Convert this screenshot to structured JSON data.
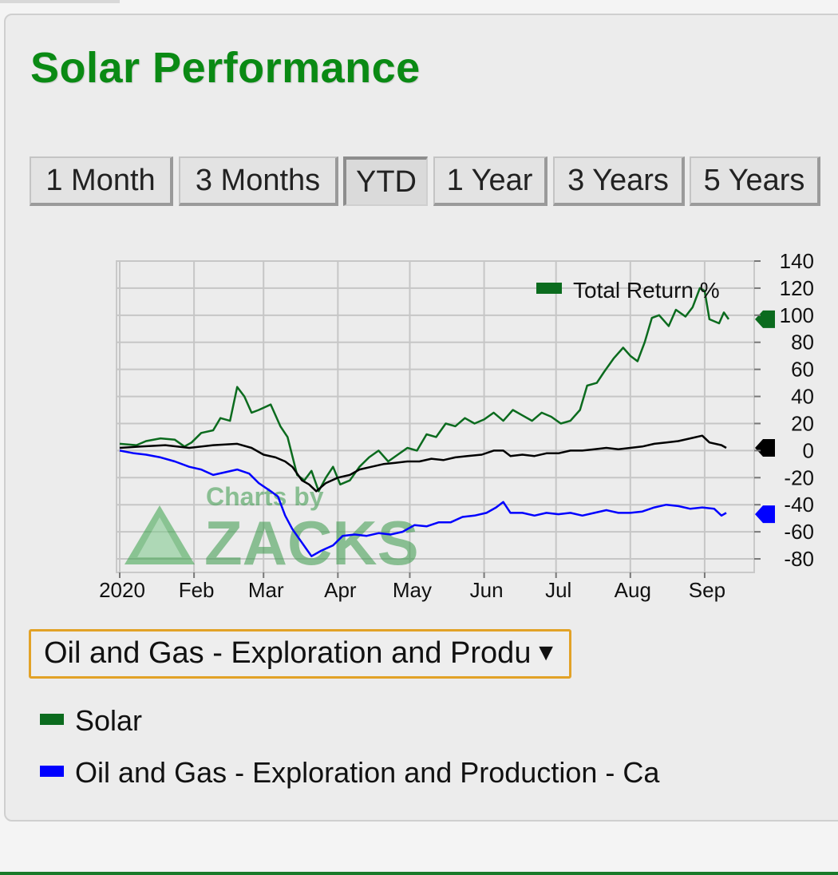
{
  "title": "Solar Performance",
  "tabs": [
    {
      "label": "1 Month",
      "active": false
    },
    {
      "label": "3 Months",
      "active": false
    },
    {
      "label": "YTD",
      "active": true
    },
    {
      "label": "1 Year",
      "active": false
    },
    {
      "label": "3 Years",
      "active": false
    },
    {
      "label": "5 Years",
      "active": false
    }
  ],
  "dropdown": {
    "selected": "Oil and Gas - Exploration and Production - Canadian"
  },
  "legend": {
    "items": [
      {
        "label": "Solar",
        "color": "#0b6b1e"
      },
      {
        "label": "Oil and Gas - Exploration and Production - Ca",
        "color": "#0000ff"
      }
    ]
  },
  "watermark": {
    "line1": "Charts by",
    "line2": "ZACKS"
  },
  "chart_data": {
    "type": "line",
    "legend_title": "Total Return %",
    "legend_position": "top-right",
    "grid": true,
    "y_axis_side": "right",
    "ylim": [
      -90,
      140
    ],
    "yticks": [
      140,
      120,
      100,
      80,
      60,
      40,
      20,
      0,
      -20,
      -40,
      -60,
      -80
    ],
    "xlim": [
      "2020-01-01",
      "2020-09-20"
    ],
    "xticks": [
      {
        "date": "2020-01-01",
        "label": "2020"
      },
      {
        "date": "2020-02-01",
        "label": "Feb"
      },
      {
        "date": "2020-03-01",
        "label": "Mar"
      },
      {
        "date": "2020-04-01",
        "label": "Apr"
      },
      {
        "date": "2020-05-01",
        "label": "May"
      },
      {
        "date": "2020-06-01",
        "label": "Jun"
      },
      {
        "date": "2020-07-01",
        "label": "Jul"
      },
      {
        "date": "2020-08-01",
        "label": "Aug"
      },
      {
        "date": "2020-09-01",
        "label": "Sep"
      }
    ],
    "series": [
      {
        "name": "Solar",
        "color": "#0b6b1e",
        "last_value": 97,
        "points": [
          [
            "2020-01-01",
            5
          ],
          [
            "2020-01-08",
            4
          ],
          [
            "2020-01-12",
            7
          ],
          [
            "2020-01-18",
            9
          ],
          [
            "2020-01-24",
            8
          ],
          [
            "2020-01-28",
            3
          ],
          [
            "2020-01-31",
            6
          ],
          [
            "2020-02-04",
            13
          ],
          [
            "2020-02-09",
            15
          ],
          [
            "2020-02-12",
            24
          ],
          [
            "2020-02-16",
            22
          ],
          [
            "2020-02-19",
            47
          ],
          [
            "2020-02-22",
            40
          ],
          [
            "2020-02-25",
            28
          ],
          [
            "2020-02-28",
            30
          ],
          [
            "2020-03-04",
            34
          ],
          [
            "2020-03-08",
            18
          ],
          [
            "2020-03-11",
            10
          ],
          [
            "2020-03-15",
            -18
          ],
          [
            "2020-03-18",
            -22
          ],
          [
            "2020-03-21",
            -15
          ],
          [
            "2020-03-24",
            -30
          ],
          [
            "2020-03-27",
            -20
          ],
          [
            "2020-03-30",
            -12
          ],
          [
            "2020-04-02",
            -25
          ],
          [
            "2020-04-06",
            -22
          ],
          [
            "2020-04-10",
            -12
          ],
          [
            "2020-04-14",
            -5
          ],
          [
            "2020-04-18",
            0
          ],
          [
            "2020-04-22",
            -8
          ],
          [
            "2020-04-26",
            -3
          ],
          [
            "2020-04-30",
            2
          ],
          [
            "2020-05-04",
            0
          ],
          [
            "2020-05-08",
            12
          ],
          [
            "2020-05-12",
            10
          ],
          [
            "2020-05-16",
            20
          ],
          [
            "2020-05-20",
            18
          ],
          [
            "2020-05-24",
            24
          ],
          [
            "2020-05-28",
            20
          ],
          [
            "2020-06-01",
            23
          ],
          [
            "2020-06-05",
            28
          ],
          [
            "2020-06-09",
            22
          ],
          [
            "2020-06-13",
            30
          ],
          [
            "2020-06-17",
            26
          ],
          [
            "2020-06-21",
            22
          ],
          [
            "2020-06-25",
            28
          ],
          [
            "2020-06-29",
            25
          ],
          [
            "2020-07-03",
            20
          ],
          [
            "2020-07-07",
            22
          ],
          [
            "2020-07-11",
            30
          ],
          [
            "2020-07-14",
            48
          ],
          [
            "2020-07-18",
            50
          ],
          [
            "2020-07-21",
            58
          ],
          [
            "2020-07-25",
            68
          ],
          [
            "2020-07-29",
            76
          ],
          [
            "2020-08-01",
            70
          ],
          [
            "2020-08-04",
            66
          ],
          [
            "2020-08-07",
            80
          ],
          [
            "2020-08-10",
            98
          ],
          [
            "2020-08-13",
            100
          ],
          [
            "2020-08-17",
            92
          ],
          [
            "2020-08-20",
            104
          ],
          [
            "2020-08-24",
            99
          ],
          [
            "2020-08-27",
            106
          ],
          [
            "2020-08-30",
            120
          ],
          [
            "2020-09-01",
            118
          ],
          [
            "2020-09-03",
            97
          ],
          [
            "2020-09-07",
            94
          ],
          [
            "2020-09-09",
            102
          ],
          [
            "2020-09-11",
            97
          ]
        ]
      },
      {
        "name": "Oil and Gas - Exploration and Production - Ca",
        "color": "#0000ff",
        "last_value": -47,
        "points": [
          [
            "2020-01-01",
            0
          ],
          [
            "2020-01-07",
            -2
          ],
          [
            "2020-01-12",
            -3
          ],
          [
            "2020-01-18",
            -5
          ],
          [
            "2020-01-24",
            -8
          ],
          [
            "2020-01-30",
            -12
          ],
          [
            "2020-02-04",
            -14
          ],
          [
            "2020-02-09",
            -18
          ],
          [
            "2020-02-14",
            -16
          ],
          [
            "2020-02-19",
            -14
          ],
          [
            "2020-02-24",
            -17
          ],
          [
            "2020-02-28",
            -24
          ],
          [
            "2020-03-04",
            -30
          ],
          [
            "2020-03-07",
            -34
          ],
          [
            "2020-03-10",
            -48
          ],
          [
            "2020-03-13",
            -58
          ],
          [
            "2020-03-17",
            -68
          ],
          [
            "2020-03-21",
            -78
          ],
          [
            "2020-03-25",
            -74
          ],
          [
            "2020-03-30",
            -70
          ],
          [
            "2020-04-03",
            -63
          ],
          [
            "2020-04-08",
            -62
          ],
          [
            "2020-04-13",
            -63
          ],
          [
            "2020-04-18",
            -61
          ],
          [
            "2020-04-23",
            -62
          ],
          [
            "2020-04-28",
            -60
          ],
          [
            "2020-05-03",
            -55
          ],
          [
            "2020-05-08",
            -56
          ],
          [
            "2020-05-13",
            -53
          ],
          [
            "2020-05-18",
            -53
          ],
          [
            "2020-05-23",
            -49
          ],
          [
            "2020-05-28",
            -48
          ],
          [
            "2020-06-02",
            -46
          ],
          [
            "2020-06-06",
            -42
          ],
          [
            "2020-06-09",
            -38
          ],
          [
            "2020-06-12",
            -46
          ],
          [
            "2020-06-17",
            -46
          ],
          [
            "2020-06-22",
            -48
          ],
          [
            "2020-06-27",
            -46
          ],
          [
            "2020-07-02",
            -47
          ],
          [
            "2020-07-07",
            -46
          ],
          [
            "2020-07-12",
            -48
          ],
          [
            "2020-07-17",
            -46
          ],
          [
            "2020-07-22",
            -44
          ],
          [
            "2020-07-27",
            -46
          ],
          [
            "2020-08-01",
            -46
          ],
          [
            "2020-08-06",
            -45
          ],
          [
            "2020-08-11",
            -42
          ],
          [
            "2020-08-16",
            -40
          ],
          [
            "2020-08-21",
            -41
          ],
          [
            "2020-08-26",
            -43
          ],
          [
            "2020-08-31",
            -42
          ],
          [
            "2020-09-05",
            -43
          ],
          [
            "2020-09-08",
            -48
          ],
          [
            "2020-09-10",
            -46
          ]
        ]
      },
      {
        "color": "#000000",
        "last_value": 2,
        "points": [
          [
            "2020-01-01",
            2
          ],
          [
            "2020-01-10",
            3
          ],
          [
            "2020-01-20",
            4
          ],
          [
            "2020-01-30",
            2
          ],
          [
            "2020-02-09",
            4
          ],
          [
            "2020-02-19",
            5
          ],
          [
            "2020-02-25",
            2
          ],
          [
            "2020-03-01",
            -3
          ],
          [
            "2020-03-06",
            -5
          ],
          [
            "2020-03-10",
            -8
          ],
          [
            "2020-03-13",
            -12
          ],
          [
            "2020-03-17",
            -22
          ],
          [
            "2020-03-20",
            -25
          ],
          [
            "2020-03-23",
            -30
          ],
          [
            "2020-03-27",
            -24
          ],
          [
            "2020-04-01",
            -20
          ],
          [
            "2020-04-06",
            -18
          ],
          [
            "2020-04-10",
            -14
          ],
          [
            "2020-04-15",
            -12
          ],
          [
            "2020-04-20",
            -10
          ],
          [
            "2020-04-25",
            -9
          ],
          [
            "2020-04-30",
            -8
          ],
          [
            "2020-05-05",
            -8
          ],
          [
            "2020-05-10",
            -6
          ],
          [
            "2020-05-15",
            -7
          ],
          [
            "2020-05-20",
            -5
          ],
          [
            "2020-05-25",
            -4
          ],
          [
            "2020-05-31",
            -3
          ],
          [
            "2020-06-05",
            0
          ],
          [
            "2020-06-09",
            0
          ],
          [
            "2020-06-12",
            -4
          ],
          [
            "2020-06-17",
            -3
          ],
          [
            "2020-06-22",
            -4
          ],
          [
            "2020-06-27",
            -2
          ],
          [
            "2020-07-02",
            -2
          ],
          [
            "2020-07-07",
            0
          ],
          [
            "2020-07-12",
            0
          ],
          [
            "2020-07-17",
            1
          ],
          [
            "2020-07-22",
            2
          ],
          [
            "2020-07-27",
            1
          ],
          [
            "2020-08-01",
            2
          ],
          [
            "2020-08-06",
            3
          ],
          [
            "2020-08-11",
            5
          ],
          [
            "2020-08-16",
            6
          ],
          [
            "2020-08-21",
            7
          ],
          [
            "2020-08-26",
            9
          ],
          [
            "2020-08-31",
            11
          ],
          [
            "2020-09-03",
            6
          ],
          [
            "2020-09-08",
            4
          ],
          [
            "2020-09-10",
            2
          ]
        ]
      }
    ]
  }
}
